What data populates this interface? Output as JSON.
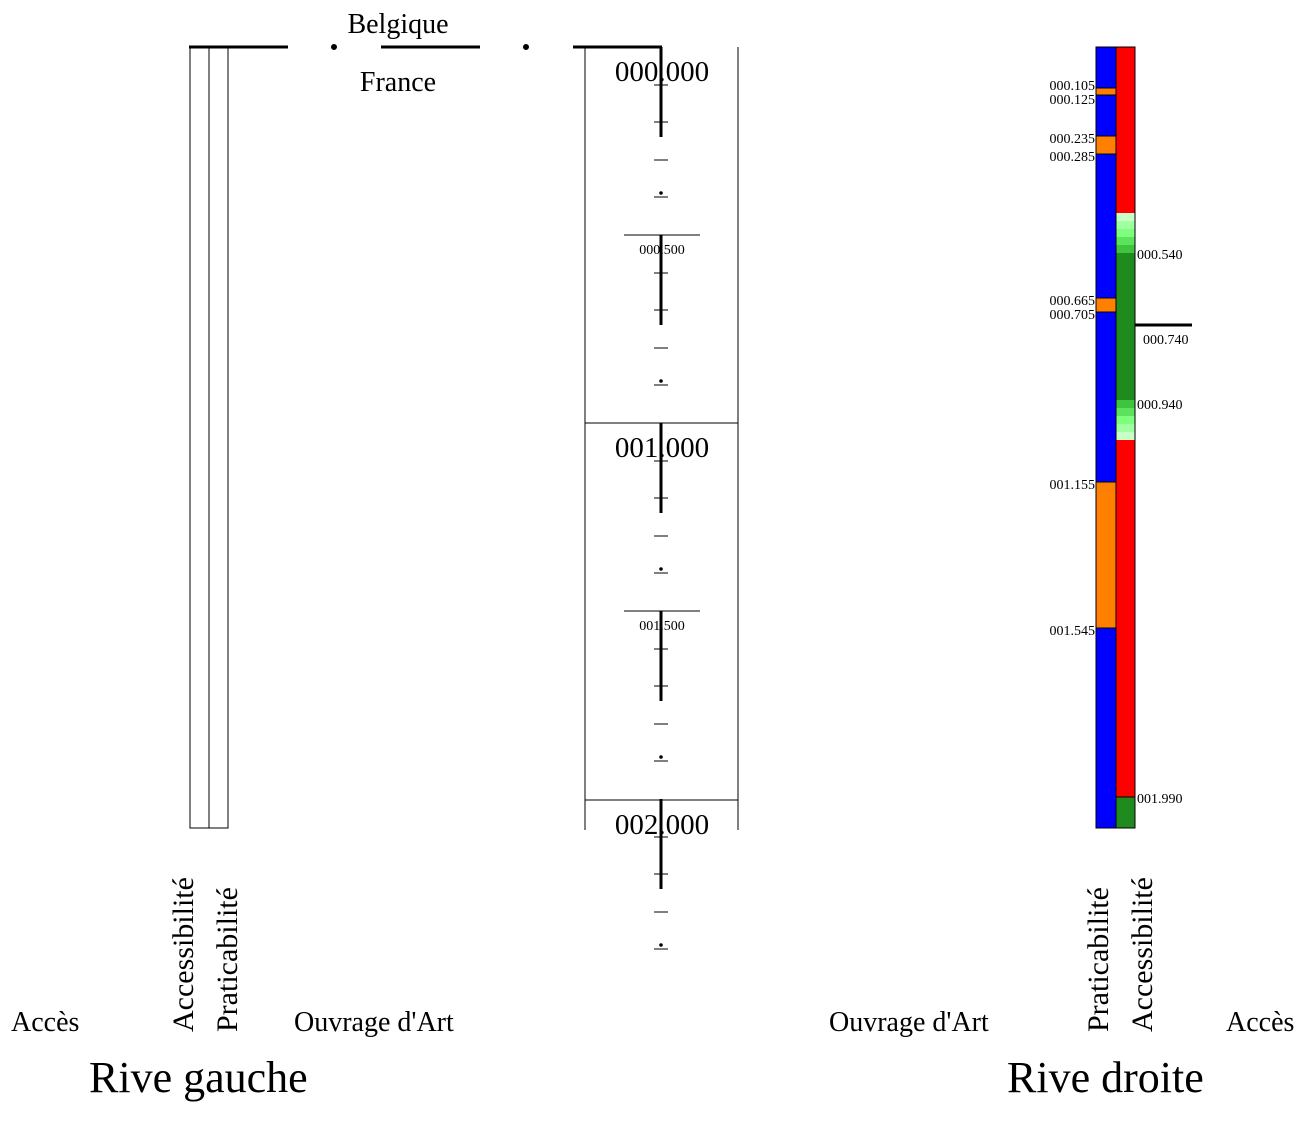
{
  "countries": {
    "top": "Belgique",
    "bottom": "France"
  },
  "banks": {
    "left": "Rive gauche",
    "right": "Rive droite"
  },
  "columns": {
    "acces": "Accès",
    "accessibilite": "Accessibilité",
    "praticabilite": "Praticabilité",
    "ouvrage": "Ouvrage d'Art"
  },
  "scale": {
    "major": [
      "000.000",
      "001.000",
      "002.000"
    ],
    "minor": [
      "000.500",
      "001.500"
    ]
  },
  "right_bank": {
    "praticabilite_labels": [
      "000.105",
      "000.125",
      "000.235",
      "000.285",
      "000.665",
      "000.705",
      "001.155",
      "001.545"
    ],
    "accessibilite_labels": [
      "000.540",
      "000.740",
      "000.940",
      "001.990"
    ]
  },
  "colors": {
    "blue": "#0000ff",
    "orange": "#ff7f00",
    "red": "#ff0000",
    "dark_green": "#1f8b1f",
    "light_green": "#7dff7d",
    "pale_green": "#c8ffc8"
  }
}
